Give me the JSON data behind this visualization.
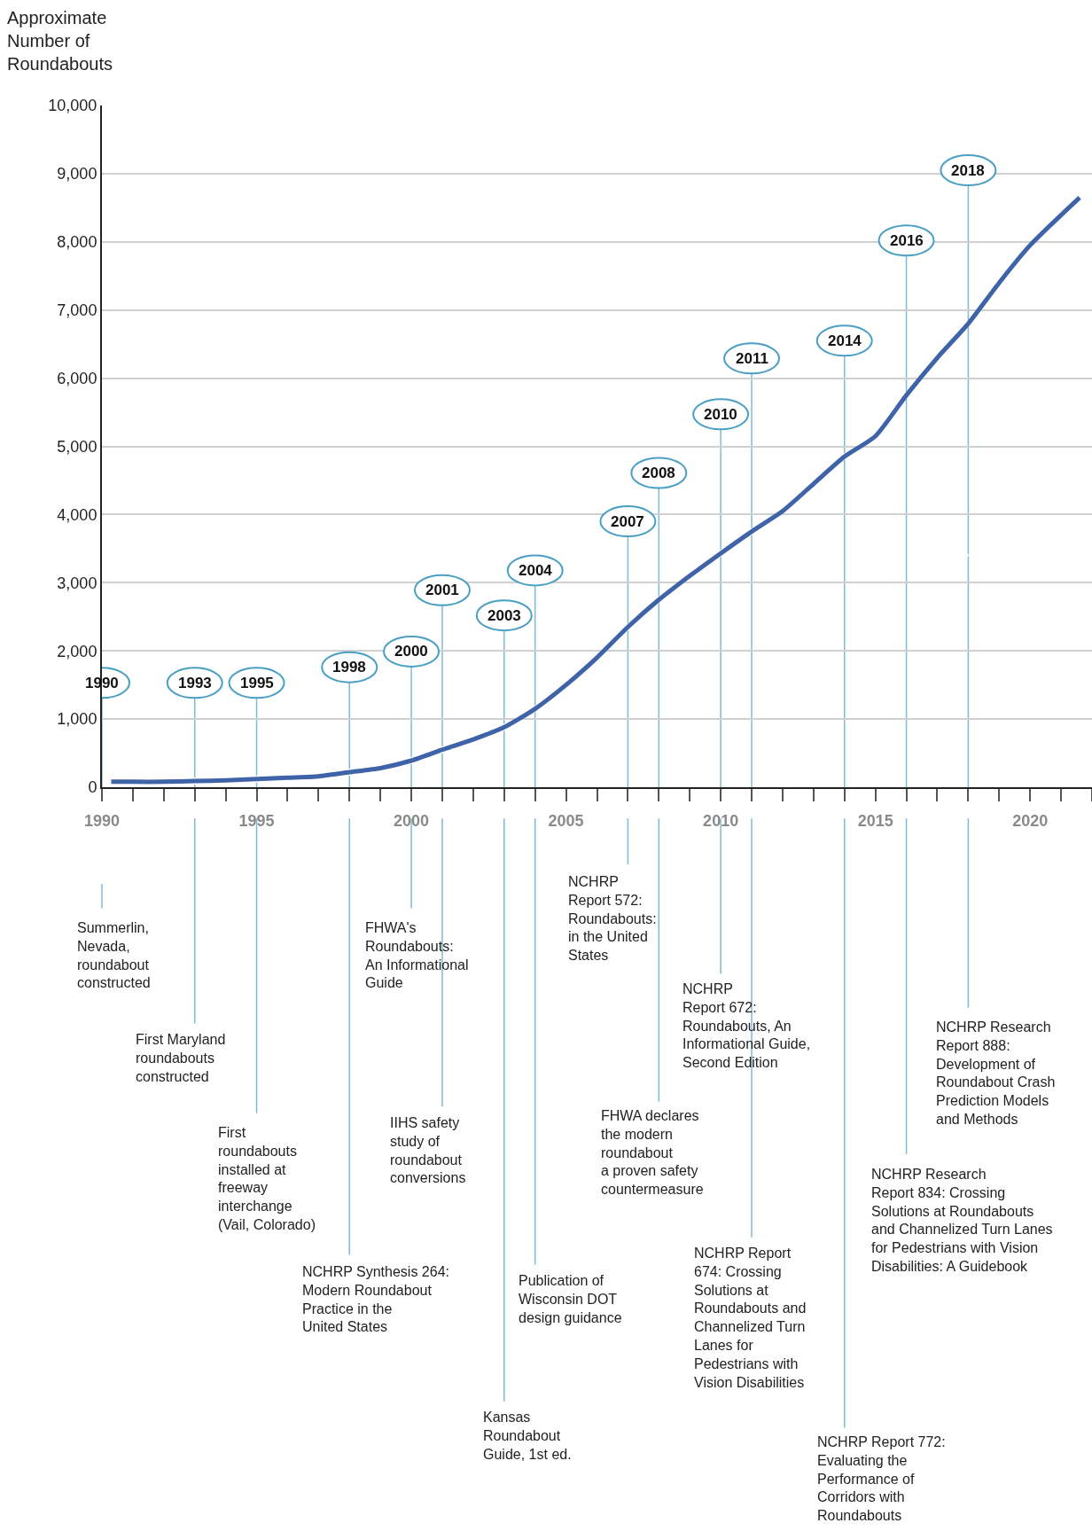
{
  "chart_data": {
    "type": "line",
    "ylabel": "Approximate\nNumber of\nRoundabouts",
    "x": [
      1990.3,
      1991,
      1992,
      1993,
      1994,
      1995,
      1996,
      1997,
      1998,
      1999,
      2000,
      2001,
      2002,
      2003,
      2004,
      2005,
      2006,
      2007,
      2008,
      2009,
      2010,
      2011,
      2012,
      2013,
      2014,
      2015,
      2016,
      2017,
      2018,
      2019,
      2020,
      2021.6
    ],
    "series": [
      {
        "color": "#3f63a8",
        "values": [
          80,
          80,
          80,
          90,
          100,
          120,
          140,
          160,
          220,
          280,
          390,
          550,
          700,
          880,
          1150,
          1500,
          1900,
          2350,
          2750,
          3100,
          3430,
          3750,
          4050,
          4450,
          4850,
          5150,
          5750,
          6300,
          6800,
          7400,
          7950,
          8650
        ]
      }
    ],
    "xlim": [
      1990,
      2022
    ],
    "xticks": [
      1990,
      1995,
      2000,
      2005,
      2010,
      2015,
      2020
    ],
    "ylim": [
      0,
      10000
    ],
    "yticks": [
      {
        "value": 0,
        "label": "0"
      },
      {
        "value": 1000,
        "label": "1,000"
      },
      {
        "value": 2000,
        "label": "2,000"
      },
      {
        "value": 3000,
        "label": "3,000"
      },
      {
        "value": 4000,
        "label": "4,000"
      },
      {
        "value": 5000,
        "label": "5,000"
      },
      {
        "value": 6000,
        "label": "6,000"
      },
      {
        "value": 7000,
        "label": "7,000"
      },
      {
        "value": 8000,
        "label": "8,000"
      },
      {
        "value": 9000,
        "label": "9,000"
      },
      {
        "value": 10000,
        "label": "10,000"
      }
    ],
    "grid": "y",
    "annotations": [
      "1990",
      {
        "text": "1993",
        "x": 1993,
        "y": 90
      },
      {
        "text": "1995",
        "x": 1995,
        "y": 120
      },
      {
        "text": "1998",
        "x": 1998,
        "y": 220
      },
      {
        "text": "2000",
        "x": 2000,
        "y": 390
      },
      {
        "text": "2001",
        "x": 2001,
        "y": 550
      },
      {
        "text": "2003",
        "x": 2003,
        "y": 880
      },
      {
        "text": "2004",
        "x": 2004,
        "y": 1150
      },
      {
        "text": "2007",
        "x": 2007,
        "y": 2350
      },
      {
        "text": "2008",
        "x": 2008,
        "y": 2750
      },
      {
        "text": "2010",
        "x": 2010,
        "y": 3430
      },
      {
        "text": "2011",
        "x": 2011,
        "y": 3750
      },
      {
        "text": "2014",
        "x": 2014,
        "y": 4850
      },
      {
        "text": "2016",
        "x": 2016,
        "y": 5750
      },
      {
        "text": "2018",
        "x": 2018,
        "y": 6800
      },
      "Summerlin,\nNevada,\nroundabout\nconstructed",
      "First Maryland\nroundabouts\nconstructed",
      "First\nroundabouts\ninstalled at\nfreeway\ninterchange\n(Vail, Colorado)",
      "NCHRP Synthesis 264:\nModern Roundabout\nPractice in the\nUnited States",
      "FHWA's\nRoundabouts:\nAn Informational\nGuide",
      "IIHS safety\nstudy of\nroundabout\nconversions",
      "Kansas\nRoundabout\nGuide, 1st ed.",
      "Publication of\nWisconsin DOT\ndesign guidance",
      "NCHRP\nReport 572:\nRoundabouts:\nin the United\nStates",
      "FHWA declares\nthe modern\nroundabout\na proven safety\ncountermeasure",
      "NCHRP\nReport 672:\nRoundabouts, An\nInformational Guide,\nSecond Edition",
      "NCHRP Report\n674: Crossing\nSolutions at\nRoundabouts and\nChannelized Turn\nLanes for\nPedestrians with\nVision Disabilities",
      "NCHRP Report 772:\nEvaluating the\nPerformance of\nCorridors with\nRoundabouts",
      "NCHRP Research\nReport 834: Crossing\nSolutions at Roundabouts\nand Channelized Turn Lanes\nfor Pedestrians with Vision\nDisabilities: A Guidebook",
      "NCHRP Research\nReport 888:\nDevelopment of\nRoundabout Crash\nPrediction Models\nand Methods"
    ]
  }
}
